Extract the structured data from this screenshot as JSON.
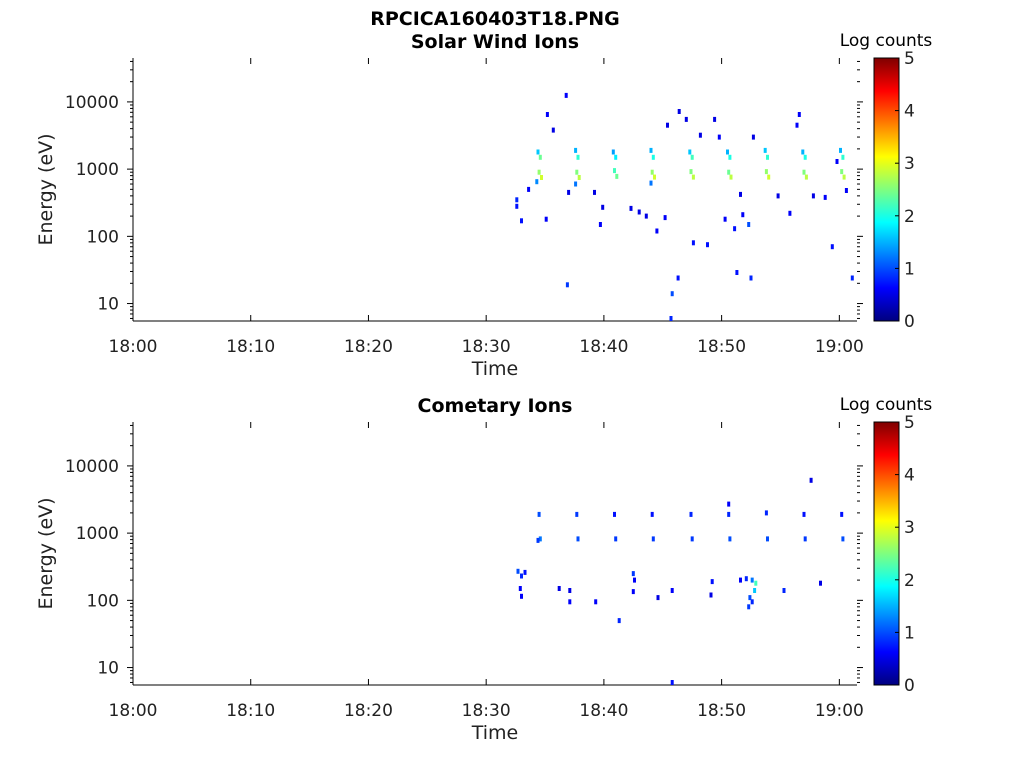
{
  "figure_title": "RPCICA160403T18.PNG",
  "colors": {
    "colormap": [
      "#00007f",
      "#0000ff",
      "#007fff",
      "#00ffff",
      "#7fff7f",
      "#ffff00",
      "#ff7f00",
      "#ff0000",
      "#7f0000"
    ]
  },
  "chart_data": [
    {
      "type": "heatmap",
      "title": "Solar Wind Ions",
      "xlabel": "Time",
      "ylabel": "Energy (eV)",
      "x_ticks": [
        "18:00",
        "18:10",
        "18:20",
        "18:30",
        "18:40",
        "18:50",
        "19:00"
      ],
      "y_ticks": [
        "10",
        "100",
        "1000",
        "10000"
      ],
      "y_scale": "log",
      "y_range": [
        5.5,
        45000
      ],
      "x_range_minutes": [
        0,
        61.5
      ],
      "colorbar": {
        "label": "Log counts",
        "ticks": [
          "0",
          "1",
          "2",
          "3",
          "4",
          "5"
        ],
        "range": [
          0,
          5
        ]
      },
      "burst_times_min": [
        34.5,
        37.7,
        40.9,
        44.1,
        47.4,
        50.6,
        53.8,
        57.0,
        60.2
      ],
      "points": [
        {
          "t": 34.4,
          "e": 1800,
          "v": 1.6
        },
        {
          "t": 34.6,
          "e": 1500,
          "v": 2.4
        },
        {
          "t": 34.5,
          "e": 900,
          "v": 2.6
        },
        {
          "t": 34.7,
          "e": 750,
          "v": 2.9
        },
        {
          "t": 34.3,
          "e": 650,
          "v": 1.3
        },
        {
          "t": 37.6,
          "e": 1900,
          "v": 1.5
        },
        {
          "t": 37.8,
          "e": 1500,
          "v": 2.1
        },
        {
          "t": 37.7,
          "e": 900,
          "v": 2.5
        },
        {
          "t": 37.9,
          "e": 750,
          "v": 2.8
        },
        {
          "t": 37.6,
          "e": 600,
          "v": 1.2
        },
        {
          "t": 40.8,
          "e": 1800,
          "v": 1.4
        },
        {
          "t": 41.0,
          "e": 1500,
          "v": 1.8
        },
        {
          "t": 40.9,
          "e": 950,
          "v": 2.2
        },
        {
          "t": 41.1,
          "e": 780,
          "v": 2.4
        },
        {
          "t": 44.0,
          "e": 1900,
          "v": 1.5
        },
        {
          "t": 44.2,
          "e": 1500,
          "v": 2.0
        },
        {
          "t": 44.1,
          "e": 900,
          "v": 2.6
        },
        {
          "t": 44.3,
          "e": 760,
          "v": 2.9
        },
        {
          "t": 44.0,
          "e": 620,
          "v": 1.2
        },
        {
          "t": 47.3,
          "e": 1800,
          "v": 1.6
        },
        {
          "t": 47.5,
          "e": 1500,
          "v": 2.2
        },
        {
          "t": 47.4,
          "e": 920,
          "v": 2.5
        },
        {
          "t": 47.6,
          "e": 760,
          "v": 2.8
        },
        {
          "t": 50.5,
          "e": 1800,
          "v": 1.5
        },
        {
          "t": 50.7,
          "e": 1500,
          "v": 2.0
        },
        {
          "t": 50.6,
          "e": 900,
          "v": 2.4
        },
        {
          "t": 50.8,
          "e": 760,
          "v": 2.8
        },
        {
          "t": 53.7,
          "e": 1900,
          "v": 1.6
        },
        {
          "t": 53.9,
          "e": 1500,
          "v": 2.1
        },
        {
          "t": 53.8,
          "e": 920,
          "v": 2.6
        },
        {
          "t": 54.0,
          "e": 760,
          "v": 2.9
        },
        {
          "t": 56.9,
          "e": 1800,
          "v": 1.5
        },
        {
          "t": 57.1,
          "e": 1500,
          "v": 2.0
        },
        {
          "t": 57.0,
          "e": 900,
          "v": 2.5
        },
        {
          "t": 57.2,
          "e": 760,
          "v": 2.8
        },
        {
          "t": 60.1,
          "e": 1900,
          "v": 1.5
        },
        {
          "t": 60.3,
          "e": 1500,
          "v": 2.1
        },
        {
          "t": 60.2,
          "e": 920,
          "v": 2.5
        },
        {
          "t": 60.4,
          "e": 760,
          "v": 2.8
        },
        {
          "t": 32.6,
          "e": 350,
          "v": 0.8
        },
        {
          "t": 32.6,
          "e": 280,
          "v": 0.7
        },
        {
          "t": 33.0,
          "e": 170,
          "v": 0.7
        },
        {
          "t": 33.6,
          "e": 500,
          "v": 0.6
        },
        {
          "t": 35.2,
          "e": 6500,
          "v": 0.6
        },
        {
          "t": 35.7,
          "e": 3800,
          "v": 0.5
        },
        {
          "t": 35.1,
          "e": 180,
          "v": 0.6
        },
        {
          "t": 36.8,
          "e": 12500,
          "v": 0.6
        },
        {
          "t": 36.9,
          "e": 19,
          "v": 0.9
        },
        {
          "t": 37.0,
          "e": 450,
          "v": 0.5
        },
        {
          "t": 39.2,
          "e": 450,
          "v": 0.5
        },
        {
          "t": 39.7,
          "e": 150,
          "v": 0.6
        },
        {
          "t": 39.9,
          "e": 270,
          "v": 0.5
        },
        {
          "t": 42.3,
          "e": 260,
          "v": 0.5
        },
        {
          "t": 43.0,
          "e": 230,
          "v": 0.5
        },
        {
          "t": 43.6,
          "e": 200,
          "v": 0.5
        },
        {
          "t": 44.5,
          "e": 120,
          "v": 0.6
        },
        {
          "t": 45.2,
          "e": 190,
          "v": 0.6
        },
        {
          "t": 45.4,
          "e": 4500,
          "v": 0.5
        },
        {
          "t": 45.8,
          "e": 14,
          "v": 1.0
        },
        {
          "t": 45.7,
          "e": 6,
          "v": 0.8
        },
        {
          "t": 46.3,
          "e": 24,
          "v": 0.7
        },
        {
          "t": 46.4,
          "e": 7200,
          "v": 0.5
        },
        {
          "t": 47.0,
          "e": 5500,
          "v": 0.5
        },
        {
          "t": 47.6,
          "e": 80,
          "v": 0.7
        },
        {
          "t": 48.2,
          "e": 3200,
          "v": 0.5
        },
        {
          "t": 48.8,
          "e": 75,
          "v": 0.7
        },
        {
          "t": 49.4,
          "e": 5500,
          "v": 0.5
        },
        {
          "t": 49.8,
          "e": 3000,
          "v": 0.6
        },
        {
          "t": 50.3,
          "e": 180,
          "v": 0.6
        },
        {
          "t": 51.1,
          "e": 130,
          "v": 0.7
        },
        {
          "t": 51.3,
          "e": 29,
          "v": 0.7
        },
        {
          "t": 51.6,
          "e": 420,
          "v": 0.5
        },
        {
          "t": 51.8,
          "e": 210,
          "v": 0.6
        },
        {
          "t": 52.3,
          "e": 150,
          "v": 1.0
        },
        {
          "t": 52.5,
          "e": 24,
          "v": 0.8
        },
        {
          "t": 52.7,
          "e": 3000,
          "v": 0.5
        },
        {
          "t": 54.8,
          "e": 400,
          "v": 0.5
        },
        {
          "t": 55.8,
          "e": 220,
          "v": 0.6
        },
        {
          "t": 56.4,
          "e": 4500,
          "v": 0.6
        },
        {
          "t": 56.6,
          "e": 6500,
          "v": 0.6
        },
        {
          "t": 57.8,
          "e": 400,
          "v": 0.5
        },
        {
          "t": 58.8,
          "e": 380,
          "v": 0.6
        },
        {
          "t": 59.4,
          "e": 70,
          "v": 0.7
        },
        {
          "t": 59.8,
          "e": 1300,
          "v": 0.6
        },
        {
          "t": 60.6,
          "e": 480,
          "v": 0.6
        },
        {
          "t": 61.1,
          "e": 24,
          "v": 0.8
        }
      ]
    },
    {
      "type": "heatmap",
      "title": "Cometary Ions",
      "xlabel": "Time",
      "ylabel": "Energy (eV)",
      "x_ticks": [
        "18:00",
        "18:10",
        "18:20",
        "18:30",
        "18:40",
        "18:50",
        "19:00"
      ],
      "y_ticks": [
        "10",
        "100",
        "1000",
        "10000"
      ],
      "y_scale": "log",
      "y_range": [
        5.5,
        45000
      ],
      "x_range_minutes": [
        0,
        61.5
      ],
      "colorbar": {
        "label": "Log counts",
        "ticks": [
          "0",
          "1",
          "2",
          "3",
          "4",
          "5"
        ],
        "range": [
          0,
          5
        ]
      },
      "points": [
        {
          "t": 34.5,
          "e": 1900,
          "v": 1.0
        },
        {
          "t": 34.6,
          "e": 820,
          "v": 1.2
        },
        {
          "t": 34.4,
          "e": 780,
          "v": 0.9
        },
        {
          "t": 37.7,
          "e": 1900,
          "v": 0.9
        },
        {
          "t": 37.8,
          "e": 820,
          "v": 1.0
        },
        {
          "t": 40.9,
          "e": 1900,
          "v": 0.7
        },
        {
          "t": 41.0,
          "e": 820,
          "v": 0.9
        },
        {
          "t": 44.1,
          "e": 1900,
          "v": 0.7
        },
        {
          "t": 44.2,
          "e": 820,
          "v": 0.9
        },
        {
          "t": 47.4,
          "e": 1900,
          "v": 0.8
        },
        {
          "t": 47.5,
          "e": 820,
          "v": 0.9
        },
        {
          "t": 50.6,
          "e": 2700,
          "v": 0.6
        },
        {
          "t": 50.6,
          "e": 1900,
          "v": 0.8
        },
        {
          "t": 50.7,
          "e": 820,
          "v": 1.0
        },
        {
          "t": 53.8,
          "e": 2000,
          "v": 0.8
        },
        {
          "t": 53.9,
          "e": 820,
          "v": 1.0
        },
        {
          "t": 57.0,
          "e": 1900,
          "v": 0.7
        },
        {
          "t": 57.1,
          "e": 820,
          "v": 0.9
        },
        {
          "t": 60.2,
          "e": 1900,
          "v": 0.7
        },
        {
          "t": 60.3,
          "e": 820,
          "v": 1.0
        },
        {
          "t": 32.7,
          "e": 270,
          "v": 1.0
        },
        {
          "t": 33.0,
          "e": 230,
          "v": 0.8
        },
        {
          "t": 33.3,
          "e": 260,
          "v": 0.7
        },
        {
          "t": 32.9,
          "e": 150,
          "v": 0.6
        },
        {
          "t": 33.0,
          "e": 115,
          "v": 0.6
        },
        {
          "t": 36.2,
          "e": 150,
          "v": 0.5
        },
        {
          "t": 37.1,
          "e": 140,
          "v": 0.5
        },
        {
          "t": 37.1,
          "e": 95,
          "v": 0.6
        },
        {
          "t": 39.3,
          "e": 95,
          "v": 0.6
        },
        {
          "t": 41.3,
          "e": 50,
          "v": 0.8
        },
        {
          "t": 42.5,
          "e": 250,
          "v": 0.9
        },
        {
          "t": 42.6,
          "e": 200,
          "v": 0.6
        },
        {
          "t": 42.5,
          "e": 135,
          "v": 0.6
        },
        {
          "t": 44.6,
          "e": 110,
          "v": 0.5
        },
        {
          "t": 45.8,
          "e": 140,
          "v": 0.6
        },
        {
          "t": 45.8,
          "e": 6,
          "v": 0.7
        },
        {
          "t": 49.2,
          "e": 190,
          "v": 0.7
        },
        {
          "t": 49.1,
          "e": 120,
          "v": 0.5
        },
        {
          "t": 51.6,
          "e": 200,
          "v": 0.6
        },
        {
          "t": 52.1,
          "e": 210,
          "v": 0.8
        },
        {
          "t": 52.6,
          "e": 200,
          "v": 1.2
        },
        {
          "t": 52.9,
          "e": 180,
          "v": 2.2
        },
        {
          "t": 52.8,
          "e": 140,
          "v": 1.6
        },
        {
          "t": 52.4,
          "e": 110,
          "v": 1.0
        },
        {
          "t": 52.3,
          "e": 80,
          "v": 0.9
        },
        {
          "t": 52.6,
          "e": 95,
          "v": 0.8
        },
        {
          "t": 55.3,
          "e": 140,
          "v": 0.8
        },
        {
          "t": 57.6,
          "e": 6100,
          "v": 0.5
        },
        {
          "t": 58.4,
          "e": 180,
          "v": 0.5
        }
      ]
    }
  ]
}
